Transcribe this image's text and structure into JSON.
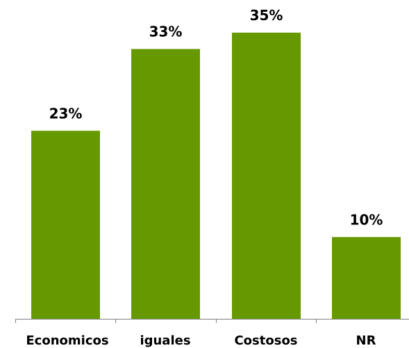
{
  "chart_data": {
    "type": "bar",
    "categories": [
      "Economicos",
      "iguales",
      "Costosos",
      "NR"
    ],
    "values": [
      23,
      33,
      35,
      10
    ],
    "value_labels": [
      "23%",
      "33%",
      "35%",
      "10%"
    ],
    "unit": "%",
    "title": "",
    "xlabel": "",
    "ylabel": "",
    "ylim": [
      0,
      35
    ],
    "grid": false,
    "legend": "none",
    "bar_color": "#669900",
    "axis_color": "#808080"
  }
}
